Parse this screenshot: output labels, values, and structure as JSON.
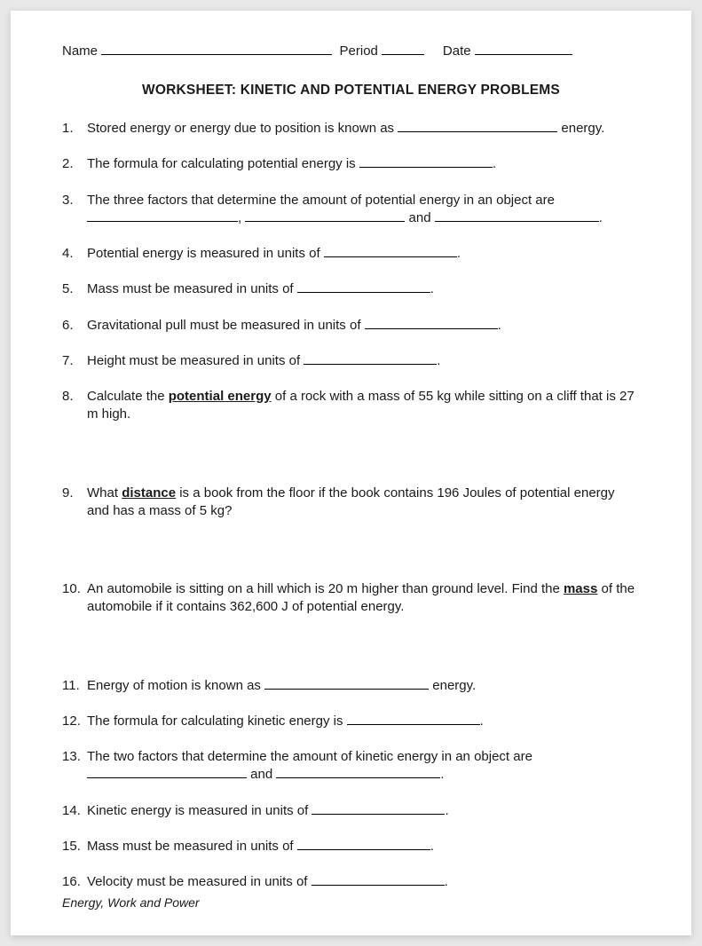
{
  "header": {
    "name_label": "Name",
    "period_label": "Period",
    "date_label": "Date"
  },
  "title": "WORKSHEET:  KINETIC AND POTENTIAL ENERGY PROBLEMS",
  "questions": {
    "q1_a": "Stored energy or energy due to position is known as ",
    "q1_b": " energy.",
    "q2_a": "The formula for calculating potential energy is ",
    "q2_b": ".",
    "q3_a": "The three factors that determine the amount of potential energy in an object are ",
    "q3_b": ", ",
    "q3_c": " and ",
    "q3_d": ".",
    "q4_a": "Potential energy is measured in units of ",
    "q4_b": ".",
    "q5_a": "Mass must be measured in units of ",
    "q5_b": ".",
    "q6_a": "Gravitational pull must be measured in units of ",
    "q6_b": ".",
    "q7_a": "Height must be measured in units of ",
    "q7_b": ".",
    "q8_a": "Calculate the ",
    "q8_key": "potential energy",
    "q8_b": " of a rock with a mass of 55 kg while sitting on a cliff that is 27 m high.",
    "q9_a": "What ",
    "q9_key": "distance",
    "q9_b": " is a book from the floor if the book contains 196 Joules of potential energy and has a mass of 5 kg?",
    "q10_a": "An automobile is sitting on a hill which is 20 m higher than ground level.  Find the ",
    "q10_key": "mass",
    "q10_b": " of the automobile if it contains 362,600 J of potential energy.",
    "q11_a": "Energy of motion is known as ",
    "q11_b": " energy.",
    "q12_a": "The formula for calculating kinetic energy is ",
    "q12_b": ".",
    "q13_a": "The two factors that determine the amount of kinetic energy in an object are ",
    "q13_b": " and ",
    "q13_c": ".",
    "q14_a": "Kinetic energy is measured in units of ",
    "q14_b": ".",
    "q15_a": "Mass must be measured in units of ",
    "q15_b": ".",
    "q16_a": "Velocity must be measured in units of ",
    "q16_b": "."
  },
  "footer": "Energy, Work and Power"
}
